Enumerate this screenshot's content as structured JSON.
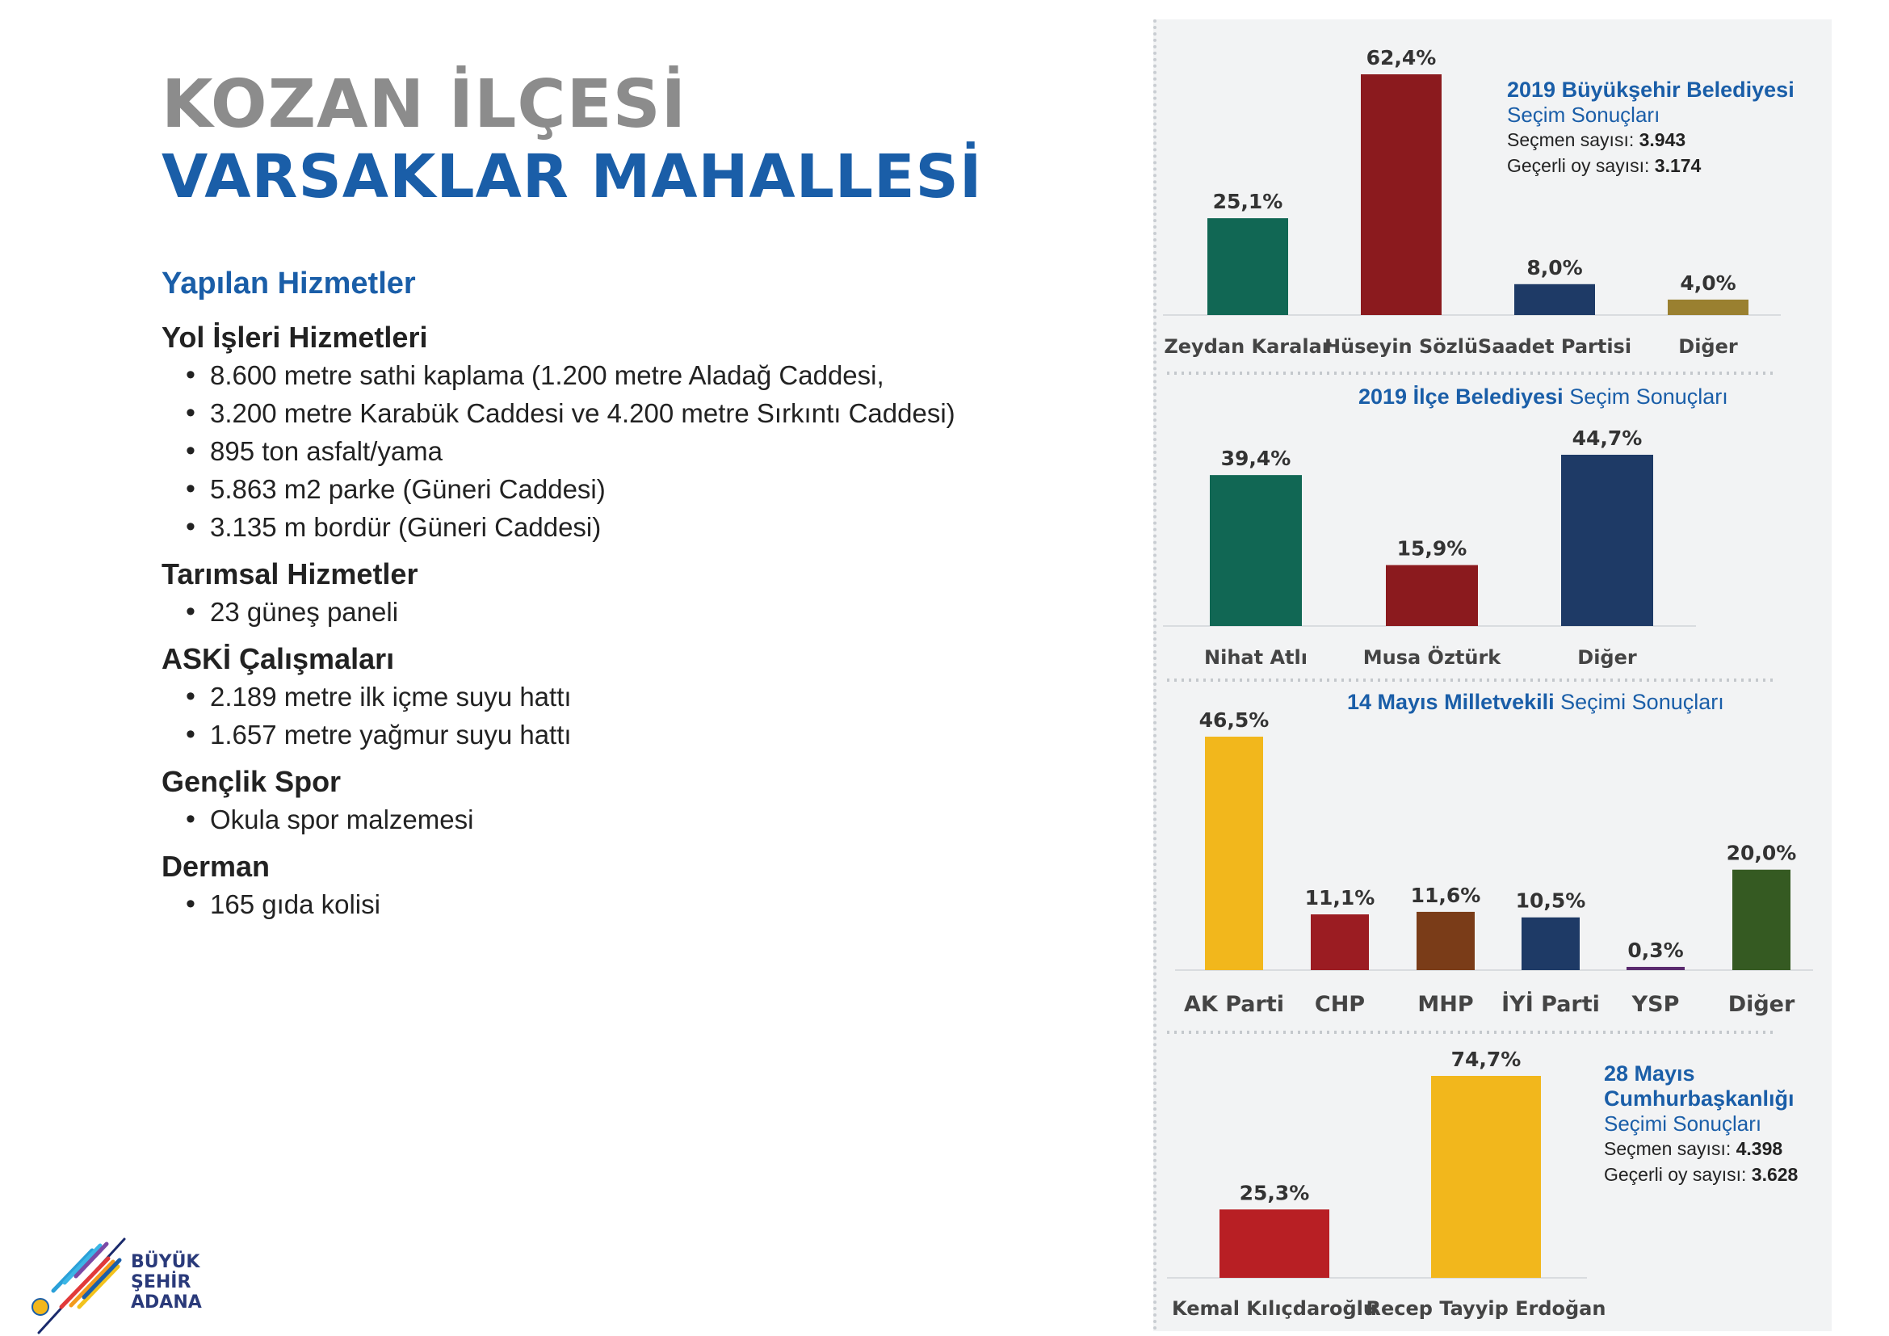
{
  "header": {
    "district": "KOZAN İLÇESİ",
    "neighborhood": "VARSAKLAR MAHALLESİ"
  },
  "services": {
    "heading": "Yapılan Hizmetler",
    "sections": [
      {
        "title": "Yol İşleri Hizmetleri",
        "items": [
          "8.600 metre sathi kaplama (1.200 metre Aladağ Caddesi,",
          "3.200 metre Karabük Caddesi ve 4.200 metre Sırkıntı Caddesi)",
          "895 ton asfalt/yama",
          "5.863 m2 parke (Güneri Caddesi)",
          "3.135 m bordür (Güneri Caddesi)"
        ]
      },
      {
        "title": "Tarımsal Hizmetler",
        "items": [
          "23 güneş paneli"
        ]
      },
      {
        "title": "ASKİ Çalışmaları",
        "items": [
          "2.189 metre ilk içme suyu hattı",
          "1.657 metre yağmur suyu hattı"
        ]
      },
      {
        "title": "Gençlik Spor",
        "items": [
          "Okula spor malzemesi"
        ]
      },
      {
        "title": "Derman",
        "items": [
          "165 gıda kolisi"
        ]
      }
    ]
  },
  "logo": {
    "lines": [
      "BÜYÜK",
      "ŞEHİR",
      "ADANA"
    ]
  },
  "chart_data": [
    {
      "type": "bar",
      "title": "2019 Büyükşehir Belediyesi",
      "subtitle": "Seçim Sonuçları",
      "voters_label": "Seçmen sayısı:",
      "voters": "3.943",
      "valid_label": "Geçerli oy sayısı:",
      "valid": "3.174",
      "categories": [
        "Zeydan Karalar",
        "Hüseyin Sözlü",
        "Saadet Partisi",
        "Diğer"
      ],
      "values": [
        25.1,
        62.4,
        8.0,
        4.0
      ],
      "labels": [
        "25,1%",
        "62,4%",
        "8,0%",
        "4,0%"
      ],
      "colors": [
        "#116754",
        "#8b1a1e",
        "#1e3a66",
        "#9a8030"
      ],
      "ylim": [
        0,
        62.4
      ]
    },
    {
      "type": "bar",
      "title": "2019 İlçe Belediyesi",
      "subtitle": "Seçim Sonuçları",
      "categories": [
        "Nihat Atlı",
        "Musa Öztürk",
        "Diğer"
      ],
      "values": [
        39.4,
        15.9,
        44.7
      ],
      "labels": [
        "39,4%",
        "15,9%",
        "44,7%"
      ],
      "colors": [
        "#116754",
        "#8b1a1e",
        "#1e3a66"
      ],
      "ylim": [
        0,
        44.7
      ]
    },
    {
      "type": "bar",
      "title": "14 Mayıs Milletvekili",
      "subtitle": "Seçimi Sonuçları",
      "categories": [
        "AK Parti",
        "CHP",
        "MHP",
        "İYİ Parti",
        "YSP",
        "Diğer"
      ],
      "values": [
        46.5,
        11.1,
        11.6,
        10.5,
        0.3,
        20.0
      ],
      "labels": [
        "46,5%",
        "11,1%",
        "11,6%",
        "10,5%",
        "0,3%",
        "20,0%"
      ],
      "colors": [
        "#f2b71c",
        "#9b1c22",
        "#7a3c18",
        "#1e3a66",
        "#5a2a6e",
        "#355a22"
      ],
      "ylim": [
        0,
        46.5
      ]
    },
    {
      "type": "bar",
      "title": "28 Mayıs Cumhurbaşkanlığı",
      "subtitle": "Seçimi Sonuçları",
      "voters_label": "Seçmen sayısı:",
      "voters": "4.398",
      "valid_label": "Geçerli oy sayısı:",
      "valid": "3.628",
      "categories": [
        "Kemal Kılıçdaroğlu",
        "Recep Tayyip Erdoğan"
      ],
      "values": [
        25.3,
        74.7
      ],
      "labels": [
        "25,3%",
        "74,7%"
      ],
      "colors": [
        "#b81f24",
        "#f2b71c"
      ],
      "ylim": [
        0,
        74.7
      ]
    }
  ]
}
